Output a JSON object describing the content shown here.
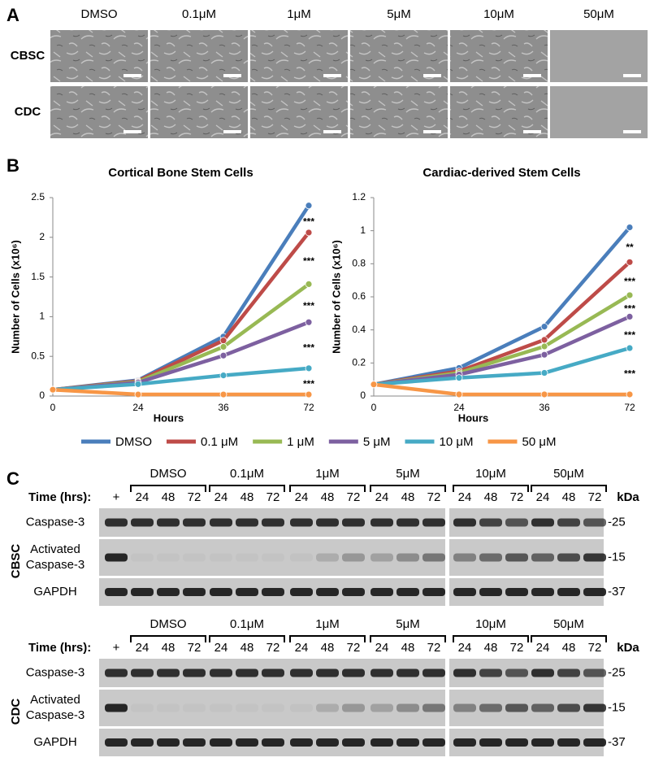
{
  "panel_a": {
    "label": "A",
    "columns": [
      "DMSO",
      "0.1μM",
      "1μM",
      "5μM",
      "10μM",
      "50μM"
    ],
    "rows": [
      "CBSC",
      "CDC"
    ]
  },
  "panel_b": {
    "label": "B"
  },
  "chart_data": [
    {
      "type": "line",
      "title": "Cortical Bone Stem Cells",
      "x_label": "Hours",
      "y_label": "Number of Cells (x10⁶)",
      "categories": [
        "0",
        "24",
        "36",
        "72"
      ],
      "ylim": [
        0,
        2.5
      ],
      "yticks": [
        0,
        0.5,
        1,
        1.5,
        2,
        2.5
      ],
      "grid": false,
      "series": [
        {
          "name": "DMSO",
          "color": "#4a7ebb",
          "values": [
            0.08,
            0.2,
            0.75,
            2.4
          ]
        },
        {
          "name": "0.1 μM",
          "color": "#be4b48",
          "values": [
            0.08,
            0.19,
            0.7,
            2.06
          ],
          "significance": "***"
        },
        {
          "name": "1 μM",
          "color": "#98b954",
          "values": [
            0.08,
            0.18,
            0.62,
            1.41
          ],
          "significance": "***"
        },
        {
          "name": "5 μM",
          "color": "#7d60a0",
          "values": [
            0.08,
            0.17,
            0.51,
            0.93
          ],
          "significance": "***"
        },
        {
          "name": "10 μM",
          "color": "#46aac5",
          "values": [
            0.08,
            0.15,
            0.26,
            0.35
          ],
          "significance": "***"
        },
        {
          "name": "50 μM",
          "color": "#f79646",
          "values": [
            0.08,
            0.02,
            0.02,
            0.02
          ],
          "significance": "***"
        }
      ]
    },
    {
      "type": "line",
      "title": "Cardiac-derived Stem Cells",
      "x_label": "Hours",
      "y_label": "Number of Cells (x10⁶)",
      "categories": [
        "0",
        "24",
        "36",
        "72"
      ],
      "ylim": [
        0,
        1.2
      ],
      "yticks": [
        0,
        0.2,
        0.4,
        0.6,
        0.8,
        1,
        1.2
      ],
      "grid": false,
      "series": [
        {
          "name": "DMSO",
          "color": "#4a7ebb",
          "values": [
            0.07,
            0.17,
            0.42,
            1.02
          ]
        },
        {
          "name": "0.1 μM",
          "color": "#be4b48",
          "values": [
            0.07,
            0.15,
            0.34,
            0.81
          ],
          "significance": "**"
        },
        {
          "name": "1 μM",
          "color": "#98b954",
          "values": [
            0.07,
            0.14,
            0.3,
            0.61
          ],
          "significance": "***"
        },
        {
          "name": "5 μM",
          "color": "#7d60a0",
          "values": [
            0.07,
            0.13,
            0.25,
            0.48
          ],
          "significance": "***"
        },
        {
          "name": "10 μM",
          "color": "#46aac5",
          "values": [
            0.07,
            0.11,
            0.14,
            0.29
          ],
          "significance": "***"
        },
        {
          "name": "50 μM",
          "color": "#f79646",
          "values": [
            0.07,
            0.01,
            0.01,
            0.01
          ],
          "significance": "***"
        }
      ]
    }
  ],
  "panel_c": {
    "label": "C",
    "blots": [
      {
        "cell_type": "CBSC",
        "time_label": "Time (hrs):",
        "control": "+",
        "unit": "kDa",
        "groups": [
          {
            "name": "DMSO",
            "times": [
              "24",
              "48",
              "72"
            ]
          },
          {
            "name": "0.1μM",
            "times": [
              "24",
              "48",
              "72"
            ]
          },
          {
            "name": "1μM",
            "times": [
              "24",
              "48",
              "72"
            ]
          },
          {
            "name": "5μM",
            "times": [
              "24",
              "48",
              "72"
            ]
          },
          {
            "name": "10μM",
            "times": [
              "24",
              "48",
              "72"
            ]
          },
          {
            "name": "50μM",
            "times": [
              "24",
              "48",
              "72"
            ]
          }
        ],
        "rows": [
          {
            "protein": [
              "Caspase-3"
            ],
            "marker": "-25"
          },
          {
            "protein": [
              "Activated",
              "Caspase-3"
            ],
            "marker": "-15"
          },
          {
            "protein": [
              "GAPDH"
            ],
            "marker": "-37"
          }
        ]
      },
      {
        "cell_type": "CDC",
        "time_label": "Time (hrs):",
        "control": "+",
        "unit": "kDa",
        "groups": [
          {
            "name": "DMSO",
            "times": [
              "24",
              "48",
              "72"
            ]
          },
          {
            "name": "0.1μM",
            "times": [
              "24",
              "48",
              "72"
            ]
          },
          {
            "name": "1μM",
            "times": [
              "24",
              "48",
              "72"
            ]
          },
          {
            "name": "5μM",
            "times": [
              "24",
              "48",
              "72"
            ]
          },
          {
            "name": "10μM",
            "times": [
              "24",
              "48",
              "72"
            ]
          },
          {
            "name": "50μM",
            "times": [
              "24",
              "48",
              "72"
            ]
          }
        ],
        "rows": [
          {
            "protein": [
              "Caspase-3"
            ],
            "marker": "-25"
          },
          {
            "protein": [
              "Activated",
              "Caspase-3"
            ],
            "marker": "-15"
          },
          {
            "protein": [
              "GAPDH"
            ],
            "marker": "-37"
          }
        ]
      }
    ]
  }
}
